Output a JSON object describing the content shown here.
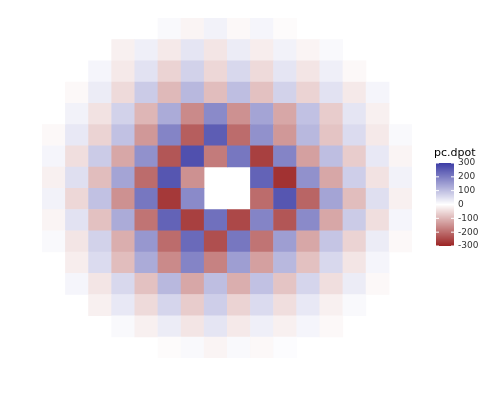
{
  "chart_data": {
    "type": "heatmap",
    "tick_labels": false,
    "cells": [
      [
        null,
        null,
        null,
        null,
        null,
        10,
        -15,
        20,
        -10,
        15,
        -5,
        null,
        null,
        null,
        null,
        null
      ],
      [
        null,
        null,
        null,
        -20,
        25,
        -30,
        40,
        -35,
        30,
        -25,
        20,
        -15,
        10,
        null,
        null,
        null
      ],
      [
        null,
        null,
        15,
        -30,
        45,
        -60,
        70,
        -55,
        60,
        -50,
        40,
        -35,
        25,
        -10,
        null,
        null
      ],
      [
        null,
        -10,
        30,
        -50,
        80,
        -95,
        110,
        -90,
        100,
        -85,
        70,
        -60,
        45,
        -30,
        15,
        null
      ],
      [
        null,
        20,
        -40,
        70,
        -100,
        130,
        -160,
        180,
        -150,
        140,
        -120,
        95,
        -70,
        40,
        -20,
        null
      ],
      [
        -10,
        35,
        -60,
        95,
        -140,
        190,
        -220,
        250,
        -200,
        170,
        -140,
        110,
        -80,
        55,
        -30,
        10
      ],
      [
        15,
        -45,
        80,
        -120,
        170,
        -230,
        270,
        -180,
        210,
        -260,
        190,
        -130,
        100,
        -70,
        35,
        -15
      ],
      [
        -20,
        50,
        -90,
        140,
        -200,
        260,
        -150,
        null,
        null,
        240,
        -280,
        170,
        -120,
        75,
        -40,
        20
      ],
      [
        20,
        -55,
        95,
        -150,
        210,
        -270,
        180,
        null,
        null,
        -200,
        260,
        -210,
        140,
        -90,
        50,
        -20
      ],
      [
        -15,
        45,
        -85,
        130,
        -190,
        240,
        -260,
        220,
        -250,
        190,
        -230,
        180,
        -120,
        80,
        -45,
        15
      ],
      [
        10,
        -35,
        70,
        -110,
        160,
        -200,
        230,
        -240,
        210,
        -190,
        150,
        -120,
        90,
        -60,
        30,
        -10
      ],
      [
        null,
        -25,
        55,
        -90,
        130,
        -160,
        190,
        -170,
        150,
        -130,
        110,
        -85,
        60,
        -35,
        15,
        null
      ],
      [
        null,
        15,
        -35,
        60,
        -85,
        110,
        -120,
        100,
        -110,
        95,
        -80,
        65,
        -45,
        30,
        -10,
        null
      ],
      [
        null,
        null,
        -20,
        35,
        -50,
        65,
        -70,
        75,
        -60,
        55,
        -45,
        35,
        -20,
        10,
        null,
        null
      ],
      [
        null,
        null,
        null,
        10,
        -20,
        30,
        -35,
        40,
        -30,
        25,
        -20,
        15,
        -10,
        null,
        null,
        null
      ],
      [
        null,
        null,
        null,
        null,
        null,
        -5,
        10,
        -15,
        10,
        -10,
        5,
        null,
        null,
        null,
        null,
        null
      ]
    ],
    "colorbar": {
      "title": "pc.dpot",
      "range": [
        -300,
        300
      ],
      "ticks": [
        -300,
        -200,
        -100,
        0,
        100,
        200,
        300
      ]
    }
  }
}
